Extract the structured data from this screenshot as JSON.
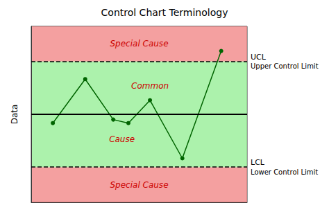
{
  "chart_data": {
    "type": "line",
    "title": "Control Chart Terminology",
    "ylabel": "Data",
    "x": [
      1.0,
      2.5,
      3.8,
      4.5,
      5.5,
      7.0,
      8.8
    ],
    "values": [
      -0.5,
      2.0,
      -0.3,
      -0.5,
      0.8,
      -2.5,
      3.6
    ],
    "color": "#006400",
    "marker": "circle",
    "xlim": [
      0,
      10
    ],
    "ylim": [
      -5.0,
      5.0
    ],
    "tick_labels": false,
    "grid": false,
    "hlines": [
      {
        "y": 3.0,
        "label": "UCL",
        "description": "Upper Control Limit",
        "line_style": "dashed",
        "color": "#000000"
      },
      {
        "y": -3.0,
        "label": "LCL",
        "description": "Lower Control Limit",
        "line_style": "dashed",
        "color": "#000000"
      },
      {
        "y": 0.0,
        "line_style": "solid",
        "color": "#000000"
      }
    ],
    "regions": [
      {
        "from": 3.0,
        "to": 5.0,
        "color": "#F08080"
      },
      {
        "from": -5.0,
        "to": -3.0,
        "color": "#F08080"
      },
      {
        "from": -3.0,
        "to": 3.0,
        "color": "#90EE90"
      }
    ],
    "annotations": [
      {
        "text": "Special Cause",
        "x": 5,
        "y": 4.0,
        "color": "#CC0000"
      },
      {
        "text": "Special Cause",
        "x": 5,
        "y": -4.0,
        "color": "#CC0000"
      },
      {
        "text": "Common",
        "x": 5.5,
        "y": 1.6,
        "color": "#CC0000"
      },
      {
        "text": "Cause",
        "x": 4.2,
        "y": -1.4,
        "color": "#CC0000"
      }
    ]
  }
}
